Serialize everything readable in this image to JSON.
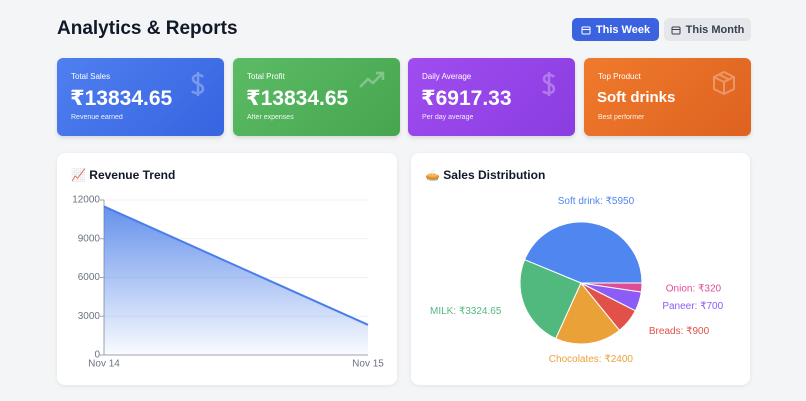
{
  "header": {
    "title": "Analytics & Reports",
    "buttons": [
      "This Week",
      "This Month"
    ]
  },
  "cards": [
    {
      "label": "Total Sales",
      "value": "₹13834.65",
      "note": "Revenue earned"
    },
    {
      "label": "Total Profit",
      "value": "₹13834.65",
      "note": "After expenses"
    },
    {
      "label": "Daily Average",
      "value": "₹6917.33",
      "note": "Per day average"
    },
    {
      "label": "Top Product",
      "value": "Soft drinks",
      "note": "Best performer"
    }
  ],
  "chart_data": [
    {
      "type": "line",
      "title": "📈 Revenue Trend",
      "categories": [
        "Nov 14",
        "Nov 15"
      ],
      "values": [
        11500,
        2334.65
      ],
      "color": "#4a7ee8",
      "ylim": [
        0,
        12000
      ],
      "yticks": [
        0,
        3000,
        6000,
        9000,
        12000
      ],
      "grid": true
    },
    {
      "type": "pie",
      "title": "🥧 Sales Distribution",
      "categories": [
        "Soft drink",
        "MILK",
        "Chocolates",
        "Breads",
        "Paneer",
        "Onion"
      ],
      "values": [
        5950,
        3324.65,
        2400,
        900,
        700,
        320
      ],
      "value_labels": [
        "Soft drink: ₹5950",
        "MILK: ₹3324.65",
        "Chocolates: ₹2400",
        "Breads: ₹900",
        "Paneer: ₹700",
        "Onion: ₹320"
      ],
      "colors": [
        "#4f86f0",
        "#52b97e",
        "#eaa238",
        "#e2504a",
        "#8b5cf6",
        "#e04c96"
      ]
    }
  ]
}
